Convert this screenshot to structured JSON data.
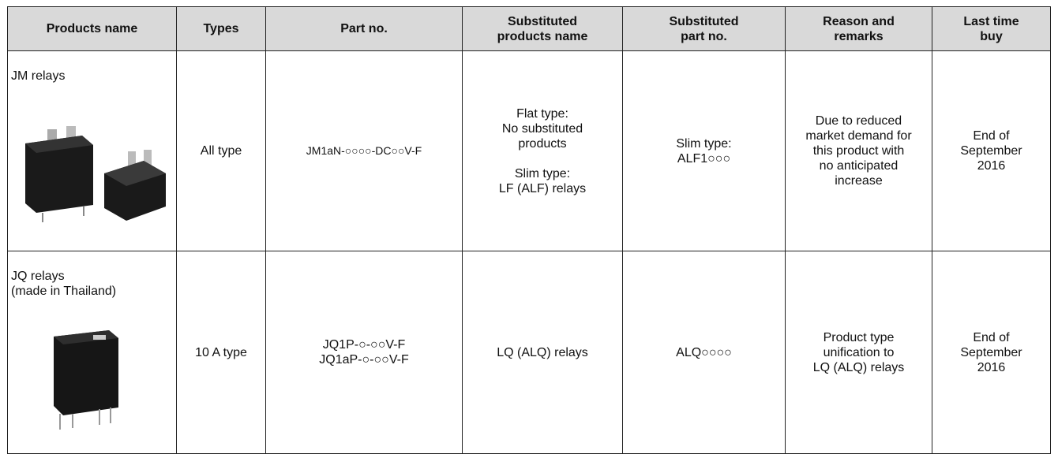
{
  "table": {
    "header": [
      "Products name",
      "Types",
      "Part no.",
      "Substituted\nproducts name",
      "Substituted\npart no.",
      "Reason and\nremarks",
      "Last time\nbuy"
    ],
    "rows": [
      [
        "JM relays",
        "All type",
        "JM1aN-○○○○-DC○○V-F",
        "Flat type:\nNo substituted\nproducts\n\nSlim type:\nLF (ALF) relays",
        "Slim type:\nALF1○○○",
        "Due to reduced\nmarket demand for\nthis product with\nno anticipated\nincrease",
        "End of\nSeptember\n2016"
      ],
      [
        "JQ relays\n(made in Thailand)",
        "10 A type",
        "JQ1P-○-○○V-F\nJQ1aP-○-○○V-F",
        "LQ (ALQ) relays",
        "ALQ○○○○",
        "Product type\nunification to\nLQ (ALQ) relays",
        "End of\nSeptember\n2016"
      ]
    ]
  }
}
